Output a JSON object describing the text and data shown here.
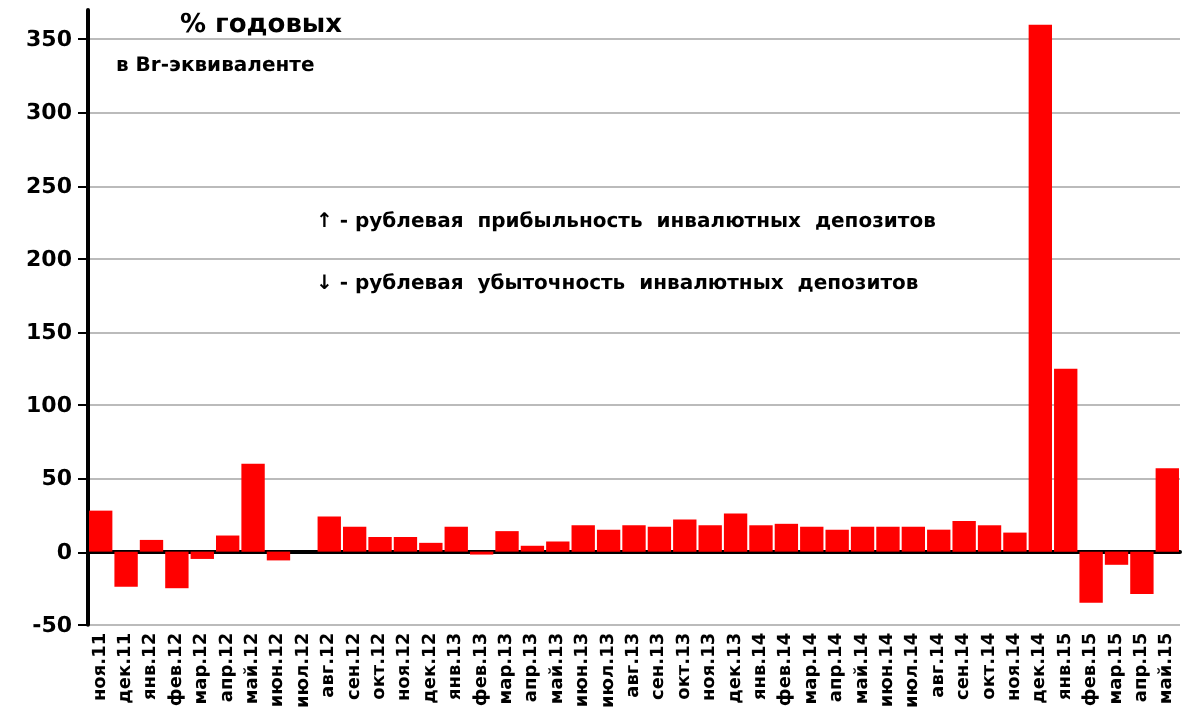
{
  "chart_data": {
    "type": "bar",
    "title": "% годовых",
    "subtitle": "в Br-эквиваленте",
    "annotations": [
      "↑ - рублевая  прибыльность  инвалютных  депозитов",
      "↓ - рублевая  убыточность  инвалютных  депозитов"
    ],
    "categories": [
      "ноя.11",
      "дек.11",
      "янв.12",
      "фев.12",
      "мар.12",
      "апр.12",
      "май.12",
      "июн.12",
      "июл.12",
      "авг.12",
      "сен.12",
      "окт.12",
      "ноя.12",
      "дек.12",
      "янв.13",
      "фев.13",
      "мар.13",
      "апр.13",
      "май.13",
      "июн.13",
      "июл.13",
      "авг.13",
      "сен.13",
      "окт.13",
      "ноя.13",
      "дек.13",
      "янв.14",
      "фев.14",
      "мар.14",
      "апр.14",
      "май.14",
      "июн.14",
      "июл.14",
      "авг.14",
      "сен.14",
      "окт.14",
      "ноя.14",
      "дек.14",
      "янв.15",
      "фев.15",
      "мар.15",
      "апр.15",
      "май.15"
    ],
    "values": [
      28,
      -24,
      8,
      -25,
      -5,
      11,
      60,
      -6,
      0,
      24,
      17,
      10,
      10,
      6,
      17,
      -2,
      14,
      4,
      7,
      18,
      15,
      18,
      17,
      22,
      18,
      26,
      18,
      19,
      17,
      15,
      17,
      17,
      17,
      15,
      21,
      18,
      13,
      360,
      125,
      -35,
      -9,
      -29,
      57
    ],
    "color": "#ff0000",
    "ylim": [
      -50,
      370
    ],
    "yticks": [
      -50,
      0,
      50,
      100,
      150,
      200,
      250,
      300,
      350
    ],
    "grid": "y"
  }
}
